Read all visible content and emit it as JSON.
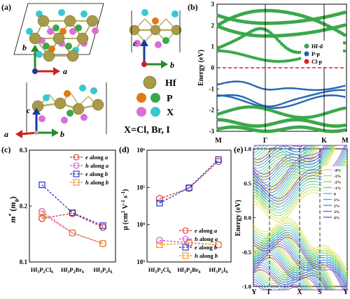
{
  "panels": {
    "a": {
      "label": "(a)",
      "axis_a": "a",
      "axis_b": "b",
      "axis_c": "c",
      "legend": [
        {
          "symbol": "Hf",
          "color": "#a89a48"
        },
        {
          "symbol": "P",
          "color": "#3aa84a"
        },
        {
          "symbol": "X",
          "color": "#38c8d0"
        }
      ],
      "colors": {
        "Hf": "#a89a48",
        "P_orange": "#e07818",
        "X_pink": "#d870d8",
        "P_green": "#3aa84a",
        "X_cyan": "#38c8d0"
      },
      "formula": "X=Cl, Br, I"
    },
    "b": {
      "label": "(b)",
      "ylabel": "Energy (eV)",
      "yticks": [
        "3",
        "2",
        "1",
        "0",
        "-1",
        "-2",
        "-3"
      ],
      "ylim": [
        -3,
        3
      ],
      "kpoints": [
        "M",
        "Γ",
        "K",
        "M"
      ],
      "legend": [
        {
          "name": "Hf-d",
          "color": "#3aa84a"
        },
        {
          "name": "P-p",
          "color": "#2060b0"
        },
        {
          "name": "Cl-p",
          "color": "#e02020"
        }
      ]
    },
    "c": {
      "label": "(c)",
      "ylabel": "m* (m0)",
      "yticks": [
        "0.3",
        "0.2",
        "0.1"
      ]
    },
    "d": {
      "label": "(d)",
      "ylabel": "μ (cm² V⁻¹ s⁻¹)",
      "yticks": [
        "10⁶",
        "10⁵",
        "10⁴",
        "10³"
      ]
    },
    "e": {
      "label": "(e)",
      "ylabel": "Energy (eV)",
      "yticks": [
        "1.0",
        "0.5",
        "0.0",
        "-0.5",
        "-1.0"
      ],
      "ylim": [
        -1,
        1
      ],
      "kpoints": [
        "Y",
        "Γ",
        "X",
        "S",
        "Y"
      ],
      "strains": [
        "-4%",
        "-3%",
        "-2%",
        "-1%",
        "0",
        "1%",
        "2%",
        "3%",
        "4%"
      ],
      "strain_colors": [
        "#e8e048",
        "#c8e058",
        "#98d860",
        "#68d090",
        "#48c8c0",
        "#48a8d8",
        "#5888d8",
        "#7068c8",
        "#8850b8"
      ]
    }
  },
  "chart_data": [
    {
      "type": "line",
      "panel": "c",
      "ylabel": "m* (m0)",
      "ylim": [
        0.1,
        0.3
      ],
      "categories": [
        "Hf3P2Cl6",
        "Hf3P2Br6",
        "Hf3P2I6"
      ],
      "category_html": [
        "Hf<tspan baseline-shift='sub' font-size='6'>3</tspan>P<tspan baseline-shift='sub' font-size='6'>2</tspan>Cl<tspan baseline-shift='sub' font-size='6'>6</tspan>"
      ],
      "series": [
        {
          "name": "e along a",
          "color": "#e03030",
          "marker": "circle",
          "values": [
            0.178,
            0.187,
            0.162
          ]
        },
        {
          "name": "h along a",
          "color": "#d050d0",
          "marker": "circle",
          "values": [
            0.19,
            0.152,
            0.133
          ]
        },
        {
          "name": "e along b",
          "color": "#2030c0",
          "marker": "square",
          "values": [
            0.238,
            0.188,
            0.165
          ]
        },
        {
          "name": "h along b",
          "color": "#f09020",
          "marker": "square",
          "values": [
            0.186,
            0.152,
            0.133
          ]
        }
      ]
    },
    {
      "type": "line",
      "panel": "d",
      "ylabel": "μ (cm² V⁻¹ s⁻¹)",
      "yscale": "log",
      "ylim": [
        1000,
        1000000
      ],
      "categories": [
        "Hf3P2Cl6",
        "Hf3P2Br6",
        "Hf3P2I6"
      ],
      "series": [
        {
          "name": "e along a",
          "color": "#e03030",
          "marker": "circle",
          "values": [
            50000,
            95000,
            500000
          ]
        },
        {
          "name": "h along a",
          "color": "#d050d0",
          "marker": "circle",
          "values": [
            3800,
            3300,
            2900
          ]
        },
        {
          "name": "e along b",
          "color": "#2030c0",
          "marker": "square",
          "values": [
            38000,
            98000,
            560000
          ]
        },
        {
          "name": "h along b",
          "color": "#f09020",
          "marker": "square",
          "values": [
            2900,
            3200,
            2900
          ]
        }
      ]
    }
  ]
}
